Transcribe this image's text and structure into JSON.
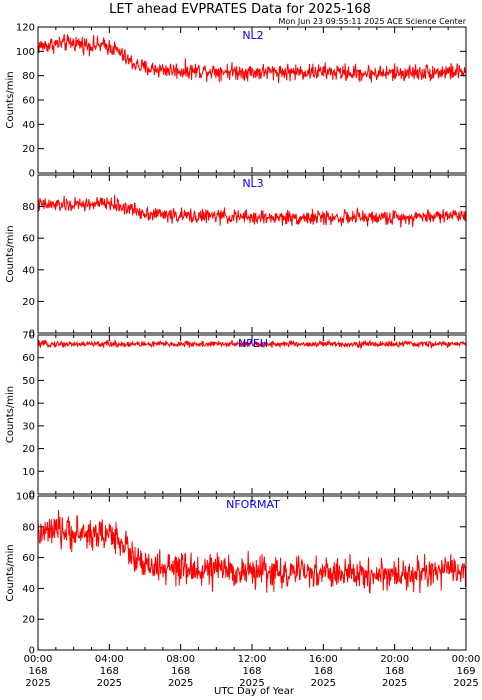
{
  "title": "LET ahead EVPRATES Data for 2025-168",
  "timestamp": "Mon Jun 23 09:55:11 2025 ACE Science Center",
  "xlabel": "UTC Day of Year",
  "colors": {
    "trace": "#ff0000",
    "panel_label": "#0000ff",
    "axis": "#000000"
  },
  "x_ticks": [
    {
      "x": 0,
      "time": "00:00",
      "day": "168",
      "year": "2025"
    },
    {
      "x": 4,
      "time": "04:00",
      "day": "168",
      "year": "2025"
    },
    {
      "x": 8,
      "time": "08:00",
      "day": "168",
      "year": "2025"
    },
    {
      "x": 12,
      "time": "12:00",
      "day": "168",
      "year": "2025"
    },
    {
      "x": 16,
      "time": "16:00",
      "day": "168",
      "year": "2025"
    },
    {
      "x": 20,
      "time": "20:00",
      "day": "168",
      "year": "2025"
    },
    {
      "x": 24,
      "time": "00:00",
      "day": "169",
      "year": "2025"
    }
  ],
  "chart_data": [
    {
      "type": "line",
      "series": [
        {
          "name": "NL2"
        }
      ],
      "ylabel": "Counts/min",
      "xlim": [
        0,
        24
      ],
      "ylim": [
        0,
        120
      ],
      "yticks": [
        0,
        20,
        40,
        60,
        80,
        100,
        120
      ],
      "x": [
        0,
        1,
        2,
        3,
        4,
        4.5,
        5,
        5.5,
        6,
        8,
        10,
        12,
        14,
        16,
        18,
        20,
        22,
        24
      ],
      "y": [
        104,
        106,
        107,
        105,
        104,
        100,
        93,
        89,
        86,
        84,
        84,
        83,
        83,
        83,
        82,
        82,
        83,
        83
      ],
      "noise": 6
    },
    {
      "type": "line",
      "series": [
        {
          "name": "NL3"
        }
      ],
      "ylabel": "Counts/min",
      "xlim": [
        0,
        24
      ],
      "ylim": [
        0,
        100
      ],
      "yticks": [
        0,
        20,
        40,
        60,
        80
      ],
      "x": [
        0,
        2,
        4,
        5,
        6,
        8,
        10,
        12,
        16,
        20,
        24
      ],
      "y": [
        81,
        81,
        82,
        79,
        76,
        74,
        74,
        73,
        73,
        73,
        75
      ],
      "noise": 4
    },
    {
      "type": "line",
      "series": [
        {
          "name": "NPEH"
        }
      ],
      "ylabel": "Counts/min",
      "xlim": [
        0,
        24
      ],
      "ylim": [
        0,
        70
      ],
      "yticks": [
        0,
        10,
        20,
        30,
        40,
        50,
        60,
        70
      ],
      "x": [
        0,
        4,
        8,
        12,
        16,
        20,
        24
      ],
      "y": [
        66,
        66,
        66,
        66,
        66,
        66,
        66
      ],
      "noise": 1.2
    },
    {
      "type": "line",
      "series": [
        {
          "name": "NFORMAT"
        }
      ],
      "ylabel": "Counts/min",
      "xlim": [
        0,
        24
      ],
      "ylim": [
        0,
        100
      ],
      "yticks": [
        0,
        20,
        40,
        60,
        80,
        100
      ],
      "x": [
        0,
        1,
        2,
        3,
        4,
        4.5,
        5,
        5.5,
        6,
        8,
        10,
        12,
        14,
        16,
        18,
        20,
        22,
        23,
        24
      ],
      "y": [
        75,
        77,
        76,
        75,
        75,
        73,
        66,
        58,
        54,
        52,
        52,
        51,
        50,
        50,
        49,
        49,
        50,
        51,
        52
      ],
      "noise": 9
    }
  ]
}
